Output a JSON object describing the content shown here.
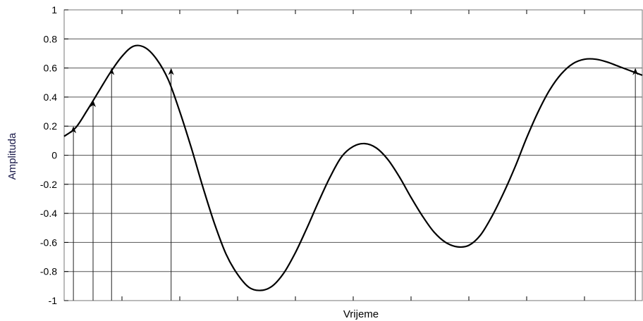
{
  "chart_data": {
    "type": "line",
    "title": "",
    "xlabel": "Vrijeme",
    "ylabel": "Amplituda",
    "ylim": [
      -1,
      1
    ],
    "xlim": [
      0,
      100
    ],
    "yticks": [
      "1",
      "0.8",
      "0.6",
      "0.4",
      "0.2",
      "0",
      "-0.2",
      "-0.4",
      "-0.6",
      "-0.8",
      "-1"
    ],
    "x_tick_labels": [],
    "grid": "horizontal",
    "legend": "none",
    "series": [
      {
        "x": [
          0,
          2,
          4,
          6,
          8,
          10,
          12,
          14,
          16,
          18,
          20,
          22,
          24,
          26,
          28,
          30,
          32,
          34,
          36,
          38,
          40,
          42,
          44,
          46,
          48,
          50,
          52,
          54,
          56,
          58,
          60,
          62,
          64,
          66,
          68,
          70,
          72,
          74,
          76,
          78,
          80,
          82,
          84,
          86,
          88,
          90,
          92,
          94,
          96,
          98,
          100
        ],
        "values": [
          0.13,
          0.19,
          0.31,
          0.44,
          0.57,
          0.68,
          0.75,
          0.74,
          0.66,
          0.52,
          0.3,
          0.05,
          -0.22,
          -0.47,
          -0.68,
          -0.82,
          -0.91,
          -0.93,
          -0.9,
          -0.81,
          -0.67,
          -0.5,
          -0.32,
          -0.15,
          -0.01,
          0.06,
          0.08,
          0.05,
          -0.03,
          -0.15,
          -0.29,
          -0.42,
          -0.53,
          -0.6,
          -0.63,
          -0.62,
          -0.55,
          -0.42,
          -0.26,
          -0.08,
          0.12,
          0.3,
          0.45,
          0.56,
          0.63,
          0.66,
          0.66,
          0.64,
          0.61,
          0.58,
          0.55
        ]
      }
    ],
    "sample_lines": [
      {
        "x": 1.6,
        "y": 0.19
      },
      {
        "x": 5.0,
        "y": 0.37
      },
      {
        "x": 8.2,
        "y": 0.59
      },
      {
        "x": 18.5,
        "y": 0.59
      },
      {
        "x": 98.8,
        "y": 0.59
      }
    ],
    "colors": {
      "curve": "#000000",
      "grid": "#555555",
      "sample": "#222222",
      "frame": "#777777"
    }
  }
}
